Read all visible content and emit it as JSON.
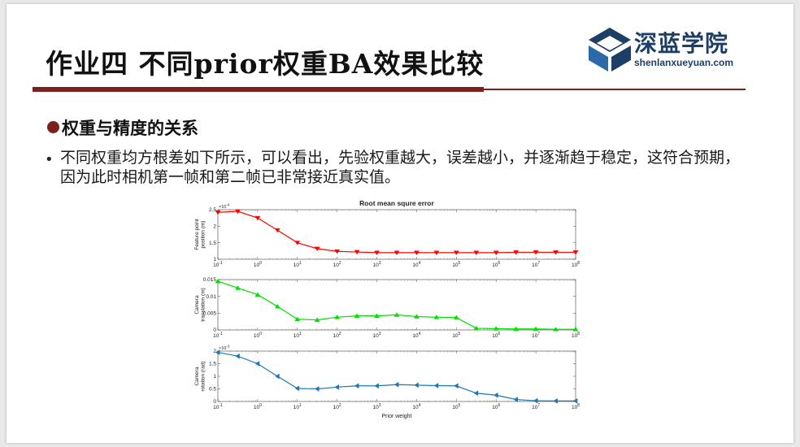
{
  "slide": {
    "title": "作业四  不同prior权重BA效果比较",
    "logo": {
      "name": "深蓝学院",
      "url": "shenlanxueyuan.com"
    },
    "section_heading": "权重与精度的关系",
    "body_text": "不同权重均方根差如下所示，可以看出，先验权重越大，误差越小，并逐渐趋于稳定，这符合预期，因为此时相机第一帧和第二帧已非常接近真实值。",
    "bullet_symbol": "•"
  },
  "colors": {
    "accent": "#7b1f1f",
    "logo": "#1d3f66",
    "series_feature": "#ff0000",
    "series_translation": "#00e000",
    "series_rotation": "#1f77b4"
  },
  "chart_data": {
    "type": "line",
    "title": "Root mean squre error",
    "xlabel": "Prior weight",
    "xscale": "log",
    "xlim": [
      0.1,
      100000000
    ],
    "x_tick_labels": [
      "10-1",
      "100",
      "101",
      "102",
      "103",
      "104",
      "105",
      "106",
      "107",
      "108"
    ],
    "x": [
      0.1,
      0.316,
      1,
      3.16,
      10,
      31.6,
      100,
      316,
      1000,
      3162,
      10000,
      31623,
      100000,
      316228,
      1000000,
      3162278,
      10000000,
      31622777,
      100000000
    ],
    "grid": false,
    "panels": [
      {
        "ylabel": "Feature point position (m)",
        "exponent_label": "×10-4",
        "ylim": [
          1,
          2.5
        ],
        "y_tick_labels": [
          "1",
          "1.5",
          "2",
          "2.5"
        ],
        "y_ticks": [
          1,
          1.5,
          2,
          2.5
        ],
        "marker": "triangle-down",
        "color": "#ff0000",
        "values": [
          2.42,
          2.45,
          2.25,
          1.88,
          1.5,
          1.32,
          1.24,
          1.22,
          1.2,
          1.2,
          1.2,
          1.2,
          1.2,
          1.2,
          1.2,
          1.21,
          1.21,
          1.21,
          1.21
        ]
      },
      {
        "ylabel": "Camera translation (m)",
        "exponent_label": "",
        "ylim": [
          0,
          0.015
        ],
        "y_tick_labels": [
          "0",
          "0.005",
          "0.01",
          "0.015"
        ],
        "y_ticks": [
          0,
          0.005,
          0.01,
          0.015
        ],
        "marker": "triangle-up",
        "color": "#00e000",
        "values": [
          0.0145,
          0.0125,
          0.0105,
          0.007,
          0.0032,
          0.003,
          0.0038,
          0.0042,
          0.0042,
          0.0045,
          0.004,
          0.0038,
          0.0037,
          0.0005,
          0.0004,
          0.0003,
          0.0003,
          0.0002,
          0.0002
        ]
      },
      {
        "ylabel": "Camera rotation (rad)",
        "exponent_label": "×10-3",
        "ylim": [
          0,
          2
        ],
        "y_tick_labels": [
          "0",
          "0.5",
          "1",
          "1.5",
          "2"
        ],
        "y_ticks": [
          0,
          0.5,
          1,
          1.5,
          2
        ],
        "marker": "triangle-left",
        "color": "#1f77b4",
        "values": [
          1.95,
          1.8,
          1.5,
          1.0,
          0.52,
          0.5,
          0.57,
          0.62,
          0.62,
          0.67,
          0.65,
          0.63,
          0.62,
          0.33,
          0.25,
          0.08,
          0.03,
          0.02,
          0.02
        ]
      }
    ]
  }
}
